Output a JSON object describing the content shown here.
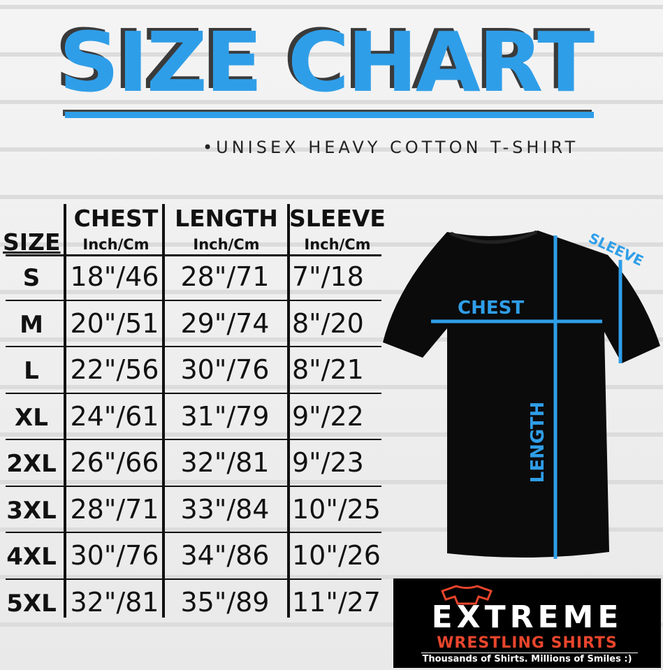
{
  "title": "SIZE CHART",
  "subtitle": "•UNISEX HEAVY COTTON T-SHIRT",
  "table": {
    "headers": {
      "size": "SIZE",
      "chest": "CHEST",
      "length": "LENGTH",
      "sleeve": "SLEEVE",
      "unit": "Inch/Cm"
    },
    "rows": [
      {
        "size": "S",
        "chest": "18\"/46",
        "length": "28\"/71",
        "sleeve": "7\"/18"
      },
      {
        "size": "M",
        "chest": "20\"/51",
        "length": "29\"/74",
        "sleeve": "8\"/20"
      },
      {
        "size": "L",
        "chest": "22\"/56",
        "length": "30\"/76",
        "sleeve": "8\"/21"
      },
      {
        "size": "XL",
        "chest": "24\"/61",
        "length": "31\"/79",
        "sleeve": "9\"/22"
      },
      {
        "size": "2XL",
        "chest": "26\"/66",
        "length": "32\"/81",
        "sleeve": "9\"/23"
      },
      {
        "size": "3XL",
        "chest": "28\"/71",
        "length": "33\"/84",
        "sleeve": "10\"/25"
      },
      {
        "size": "4XL",
        "chest": "30\"/76",
        "length": "34\"/86",
        "sleeve": "10\"/26"
      },
      {
        "size": "5XL",
        "chest": "32\"/81",
        "length": "35\"/89",
        "sleeve": "11\"/27"
      }
    ]
  },
  "diagram": {
    "chest": "CHEST",
    "length": "LENGTH",
    "sleeve": "SLEEVE"
  },
  "logo": {
    "word1": "EXTREME",
    "word2": "WRESTLING SHIRTS",
    "tagline": "Thousands of Shirts. Millions of Smiles :)"
  },
  "colors": {
    "accent": "#2f9ee8",
    "logo_red": "#e8452c"
  }
}
